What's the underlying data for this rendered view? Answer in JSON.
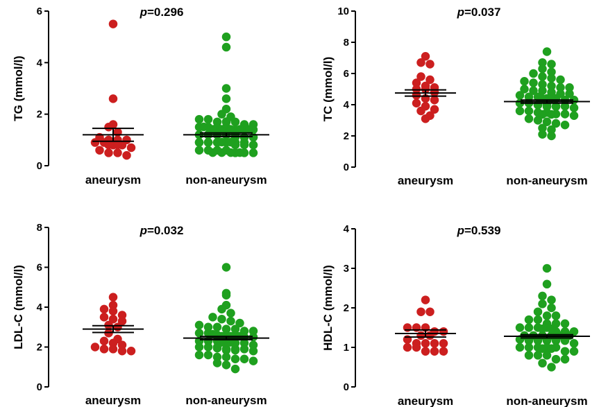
{
  "colors": {
    "aneurysm": "#cc1f1f",
    "non_aneurysm": "#1fa01f",
    "axis": "#000000"
  },
  "chart_data": [
    {
      "type": "scatter",
      "title": "p=0.296",
      "p_value": "0.296",
      "ylabel": "TG (mmol/l)",
      "ylim": [
        0,
        6
      ],
      "yticks": [
        "0",
        "2",
        "4",
        "6"
      ],
      "categories": [
        "aneurysm",
        "non-aneurysm"
      ],
      "mean": [
        1.2,
        1.2
      ],
      "sem": [
        0.25,
        0.07
      ],
      "series": [
        {
          "values": [
            5.5,
            2.6,
            1.6,
            1.5,
            1.3,
            1.1,
            1.0,
            1.0,
            1.0,
            0.9,
            0.9,
            0.8,
            0.8,
            0.7,
            0.7,
            0.7,
            0.6,
            0.5,
            0.5,
            0.4
          ]
        },
        {
          "values": [
            5.0,
            4.6,
            3.0,
            2.6,
            2.2,
            2.0,
            1.9,
            1.8,
            1.8,
            1.7,
            1.7,
            1.7,
            1.6,
            1.6,
            1.6,
            1.5,
            1.5,
            1.5,
            1.5,
            1.4,
            1.4,
            1.4,
            1.4,
            1.3,
            1.3,
            1.3,
            1.3,
            1.3,
            1.2,
            1.2,
            1.2,
            1.2,
            1.2,
            1.1,
            1.1,
            1.1,
            1.1,
            1.1,
            1.1,
            1.0,
            1.0,
            1.0,
            1.0,
            1.0,
            1.0,
            0.9,
            0.9,
            0.9,
            0.9,
            0.9,
            0.9,
            0.8,
            0.8,
            0.8,
            0.8,
            0.8,
            0.7,
            0.7,
            0.7,
            0.7,
            0.7,
            0.6,
            0.6,
            0.6,
            0.6,
            0.5,
            0.5,
            0.5,
            0.4,
            0.4,
            0.4,
            0.4
          ]
        }
      ]
    },
    {
      "type": "scatter",
      "title": "p=0.037",
      "p_value": "0.037",
      "ylabel": "TC (mmol/l)",
      "ylim": [
        0,
        10
      ],
      "yticks": [
        "0",
        "2",
        "4",
        "6",
        "8",
        "10"
      ],
      "categories": [
        "aneurysm",
        "non-aneurysm"
      ],
      "mean": [
        4.75,
        4.2
      ],
      "sem": [
        0.2,
        0.1
      ],
      "series": [
        {
          "values": [
            7.1,
            6.7,
            6.6,
            5.8,
            5.6,
            5.4,
            5.2,
            5.1,
            5.0,
            5.0,
            4.8,
            4.6,
            4.4,
            4.3,
            4.1,
            3.9,
            3.7,
            3.6,
            3.3,
            3.1
          ]
        },
        {
          "values": [
            7.4,
            6.7,
            6.6,
            6.3,
            6.1,
            6.0,
            5.8,
            5.7,
            5.6,
            5.5,
            5.4,
            5.3,
            5.2,
            5.1,
            5.1,
            5.0,
            4.9,
            4.9,
            4.8,
            4.7,
            4.7,
            4.6,
            4.5,
            4.5,
            4.4,
            4.4,
            4.3,
            4.3,
            4.2,
            4.2,
            4.1,
            4.1,
            4.0,
            4.0,
            3.9,
            3.9,
            3.8,
            3.8,
            3.7,
            3.7,
            3.6,
            3.6,
            3.5,
            3.5,
            3.4,
            3.4,
            3.3,
            3.2,
            3.2,
            3.1,
            3.0,
            2.9,
            2.8,
            2.7,
            2.5,
            2.4,
            2.1,
            2.0
          ]
        }
      ]
    },
    {
      "type": "scatter",
      "title": "p=0.032",
      "p_value": "0.032",
      "ylabel": "LDL-C (mmol/l)",
      "ylim": [
        0,
        8
      ],
      "yticks": [
        "0",
        "2",
        "4",
        "6",
        "8"
      ],
      "categories": [
        "aneurysm",
        "non-aneurysm"
      ],
      "mean": [
        2.9,
        2.45
      ],
      "sem": [
        0.17,
        0.08
      ],
      "series": [
        {
          "values": [
            4.5,
            4.1,
            3.9,
            3.8,
            3.6,
            3.5,
            3.4,
            3.3,
            3.1,
            3.0,
            2.7,
            2.4,
            2.3,
            2.2,
            2.1,
            2.0,
            1.9,
            1.9,
            1.8,
            1.8
          ]
        },
        {
          "values": [
            6.0,
            4.7,
            4.6,
            4.1,
            3.9,
            3.7,
            3.5,
            3.4,
            3.3,
            3.2,
            3.1,
            3.0,
            3.0,
            2.9,
            2.9,
            2.8,
            2.8,
            2.7,
            2.7,
            2.6,
            2.6,
            2.6,
            2.5,
            2.5,
            2.5,
            2.4,
            2.4,
            2.4,
            2.3,
            2.3,
            2.3,
            2.2,
            2.2,
            2.2,
            2.1,
            2.1,
            2.1,
            2.0,
            2.0,
            2.0,
            1.9,
            1.9,
            1.9,
            1.8,
            1.8,
            1.7,
            1.7,
            1.6,
            1.6,
            1.5,
            1.5,
            1.4,
            1.4,
            1.3,
            1.2,
            1.1,
            0.9
          ]
        }
      ]
    },
    {
      "type": "scatter",
      "title": "p=0.539",
      "p_value": "0.539",
      "ylabel": "HDL-C (mmol/l)",
      "ylim": [
        0,
        4
      ],
      "yticks": [
        "0",
        "1",
        "2",
        "3",
        "4"
      ],
      "categories": [
        "aneurysm",
        "non-aneurysm"
      ],
      "mean": [
        1.35,
        1.28
      ],
      "sem": [
        0.09,
        0.04
      ],
      "series": [
        {
          "values": [
            2.2,
            1.9,
            1.9,
            1.5,
            1.5,
            1.5,
            1.4,
            1.4,
            1.3,
            1.3,
            1.2,
            1.1,
            1.1,
            1.1,
            1.1,
            1.0,
            1.0,
            0.9,
            0.9,
            0.9
          ]
        },
        {
          "values": [
            3.0,
            2.6,
            2.3,
            2.2,
            2.1,
            2.0,
            1.9,
            1.8,
            1.8,
            1.7,
            1.7,
            1.6,
            1.6,
            1.6,
            1.5,
            1.5,
            1.5,
            1.5,
            1.4,
            1.4,
            1.4,
            1.4,
            1.4,
            1.3,
            1.3,
            1.3,
            1.3,
            1.3,
            1.3,
            1.2,
            1.2,
            1.2,
            1.2,
            1.2,
            1.2,
            1.1,
            1.1,
            1.1,
            1.1,
            1.1,
            1.1,
            1.0,
            1.0,
            1.0,
            1.0,
            1.0,
            0.9,
            0.9,
            0.9,
            0.9,
            0.8,
            0.8,
            0.8,
            0.7,
            0.7,
            0.6,
            0.5
          ]
        }
      ]
    }
  ]
}
